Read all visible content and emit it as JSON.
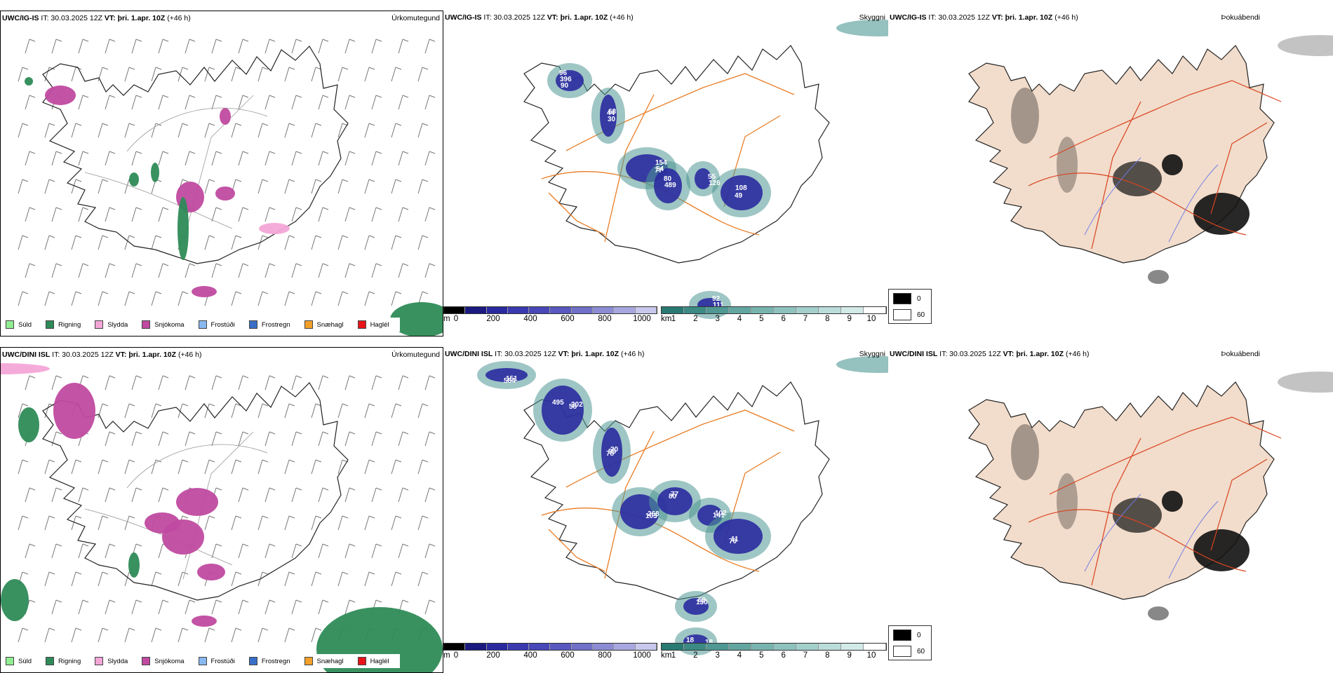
{
  "rows": [
    {
      "precip": {
        "title_model": "UWC/IG-IS",
        "title_times": " IT: 30.03.2025 12Z ",
        "title_vt_label": "VT:",
        "title_vt": " þri. 1.apr. 10Z",
        "title_offset": " (+46 h)",
        "name": "Úrkomutegund"
      },
      "vis": {
        "title_model": "UWC/IG-IS",
        "title_times": " IT: 30.03.2025 12Z ",
        "title_vt_label": "VT:",
        "title_vt": " þri. 1.apr. 10Z",
        "title_offset": " (+46 h)",
        "name": "Skyggni",
        "labels": [
          "96",
          "44",
          "77",
          "80",
          "55",
          "49",
          "92",
          "396",
          "30",
          "154",
          "489",
          "126",
          "108",
          "111",
          "90",
          "63",
          "54"
        ]
      },
      "fog": {
        "title_model": "UWC/IG-IS",
        "title_times": " IT: 30.03.2025 12Z ",
        "title_vt_label": "VT:",
        "title_vt": " þri. 1.apr. 10Z",
        "title_offset": " (+46 h)",
        "name": "Þokuábendi"
      }
    },
    {
      "precip": {
        "title_model": "UWC/DINI ISL",
        "title_times": " IT: 30.03.2025 12Z ",
        "title_vt_label": "VT:",
        "title_vt": " þri. 1.apr. 10Z",
        "title_offset": " (+46 h)",
        "name": "Úrkomutegund"
      },
      "vis": {
        "title_model": "UWC/DINI ISL",
        "title_times": " IT: 30.03.2025 12Z ",
        "title_vt_label": "VT:",
        "title_vt": " þri. 1.apr. 10Z",
        "title_offset": " (+46 h)",
        "name": "Skyggni",
        "labels": [
          "495",
          "20",
          "268",
          "77",
          "102",
          "11",
          "69",
          "18",
          "151",
          "202",
          "96",
          "103",
          "80",
          "141",
          "70",
          "130",
          "18",
          "584",
          "58",
          "78"
        ]
      },
      "fog": {
        "title_model": "UWC/DINI ISL",
        "title_times": " IT: 30.03.2025 12Z ",
        "title_vt_label": "VT:",
        "title_vt": " þri. 1.apr. 10Z",
        "title_offset": " (+46 h)",
        "name": "Þokuábendi"
      }
    }
  ],
  "precip_legend": [
    {
      "label": "Súld",
      "color": "#90ee90"
    },
    {
      "label": "Rigning",
      "color": "#2e8b57"
    },
    {
      "label": "Slydda",
      "color": "#f4a6d7"
    },
    {
      "label": "Snjókoma",
      "color": "#c04aa0"
    },
    {
      "label": "Frostúði",
      "color": "#87b9f0"
    },
    {
      "label": "Frostregn",
      "color": "#3a6fc8"
    },
    {
      "label": "Snæhagl",
      "color": "#f2a02a"
    },
    {
      "label": "Haglél",
      "color": "#e8141a"
    }
  ],
  "height_bar": {
    "unit": "m",
    "ticks": [
      "0",
      "200",
      "400",
      "600",
      "800",
      "1000"
    ],
    "colors": [
      "#000000",
      "#1a1a80",
      "#2a2aa0",
      "#3a3ab0",
      "#4848b8",
      "#5858c0",
      "#7070c8",
      "#8c8cd4",
      "#a8a8e0",
      "#c8c8ee"
    ]
  },
  "vis_bar": {
    "unit": "km",
    "ticks": [
      "1",
      "2",
      "3",
      "4",
      "5",
      "6",
      "7",
      "8",
      "9",
      "10"
    ],
    "colors": [
      "#2a7a74",
      "#3c8a84",
      "#4f9893",
      "#63a6a1",
      "#78b4af",
      "#8ec2be",
      "#a4d0cc",
      "#bbddda",
      "#d2eae8",
      "#ffffff"
    ]
  },
  "fog_legend": [
    {
      "label": "0",
      "color": "#000000"
    },
    {
      "label": "60",
      "color": "#ffffff"
    }
  ]
}
